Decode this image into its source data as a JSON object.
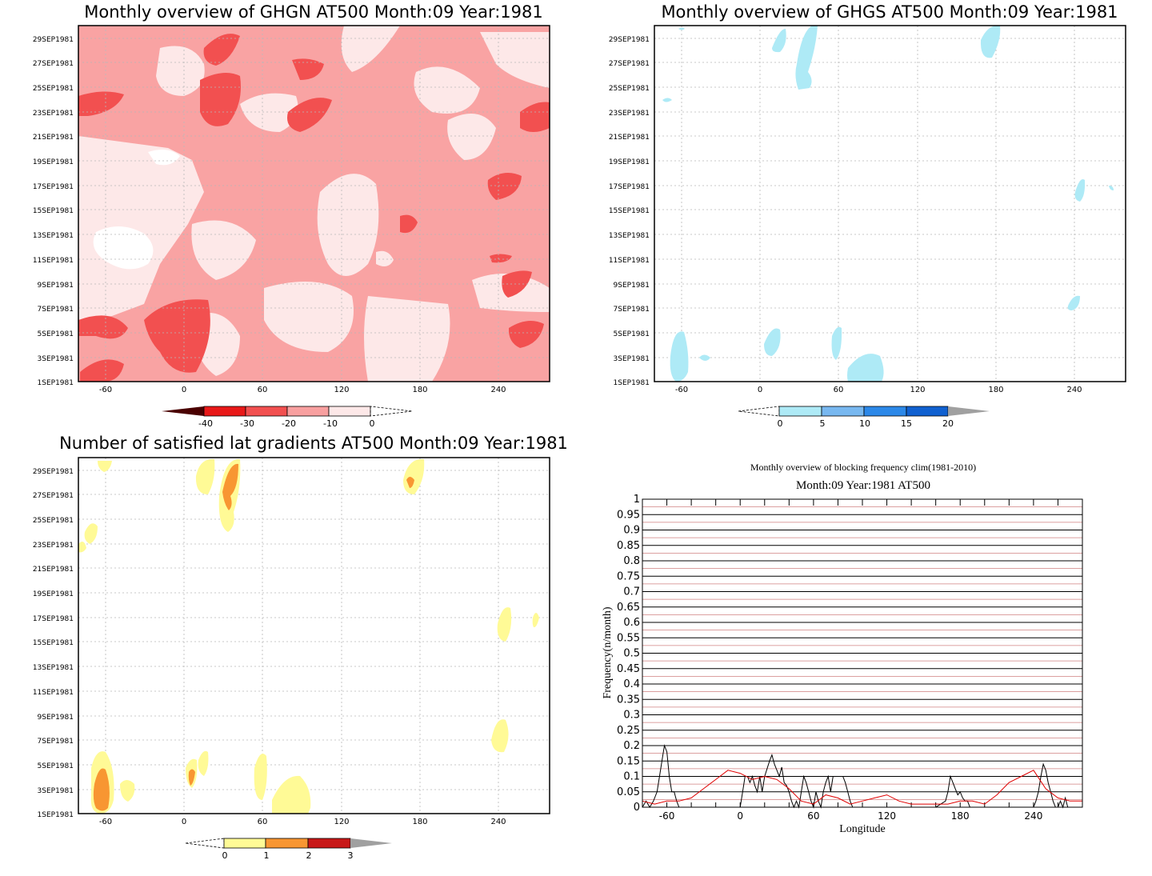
{
  "chart_data": [
    {
      "type": "heatmap",
      "title": "Monthly overview of GHGN AT500 Month:09 Year:1981",
      "x_ticks": [
        "-60",
        "0",
        "60",
        "120",
        "180",
        "240"
      ],
      "y_ticks": [
        "1SEP1981",
        "3SEP1981",
        "5SEP1981",
        "7SEP1981",
        "9SEP1981",
        "11SEP1981",
        "13SEP1981",
        "15SEP1981",
        "17SEP1981",
        "19SEP1981",
        "21SEP1981",
        "23SEP1981",
        "25SEP1981",
        "27SEP1981",
        "29SEP1981"
      ],
      "colorbar": {
        "labels": [
          "-40",
          "-30",
          "-20",
          "-10",
          "0"
        ],
        "colors": [
          "#4a0000",
          "#e81818",
          "#f25050",
          "#f8a0a0",
          "#fde8e8"
        ]
      }
    },
    {
      "type": "heatmap",
      "title": "Monthly overview of GHGS AT500 Month:09 Year:1981",
      "x_ticks": [
        "-60",
        "0",
        "60",
        "120",
        "180",
        "240"
      ],
      "y_ticks": [
        "1SEP1981",
        "3SEP1981",
        "5SEP1981",
        "7SEP1981",
        "9SEP1981",
        "11SEP1981",
        "13SEP1981",
        "15SEP1981",
        "17SEP1981",
        "19SEP1981",
        "21SEP1981",
        "23SEP1981",
        "25SEP1981",
        "27SEP1981",
        "29SEP1981"
      ],
      "colorbar": {
        "labels": [
          "0",
          "5",
          "10",
          "15",
          "20"
        ],
        "colors": [
          "#aeeaf6",
          "#78b8f0",
          "#2c88e8",
          "#1060d0",
          "#a0a0a0"
        ]
      }
    },
    {
      "type": "heatmap",
      "title": "Number of satisfied lat gradients AT500 Month:09 Year:1981",
      "x_ticks": [
        "-60",
        "0",
        "60",
        "120",
        "180",
        "240"
      ],
      "y_ticks": [
        "1SEP1981",
        "3SEP1981",
        "5SEP1981",
        "7SEP1981",
        "9SEP1981",
        "11SEP1981",
        "13SEP1981",
        "15SEP1981",
        "17SEP1981",
        "19SEP1981",
        "21SEP1981",
        "23SEP1981",
        "25SEP1981",
        "27SEP1981",
        "29SEP1981"
      ],
      "colorbar": {
        "labels": [
          "0",
          "1",
          "2",
          "3"
        ],
        "colors": [
          "#fffa96",
          "#f89632",
          "#c81818",
          "#a0a0a0"
        ]
      }
    },
    {
      "type": "line",
      "title": "Monthly overview of blocking frequency clim(1981-2010)",
      "subtitle": "Month:09 Year:1981  AT500",
      "xlabel": "Longitude",
      "ylabel": "Frequency(n/month)",
      "xlim": [
        -80,
        280
      ],
      "ylim": [
        0,
        1
      ],
      "x_ticks": [
        "-60",
        "0",
        "60",
        "120",
        "180",
        "240"
      ],
      "y_ticks": [
        "0",
        "0.05",
        "0.1",
        "0.15",
        "0.2",
        "0.25",
        "0.3",
        "0.35",
        "0.4",
        "0.45",
        "0.5",
        "0.55",
        "0.6",
        "0.65",
        "0.7",
        "0.75",
        "0.8",
        "0.85",
        "0.9",
        "0.95",
        "1"
      ],
      "series": [
        {
          "color": "#000000",
          "x": [
            -80,
            -77,
            -74,
            -71,
            -68,
            -66,
            -64,
            -62,
            -60,
            -58,
            -56,
            -54,
            -52,
            -50,
            -48,
            -46,
            -44,
            -42,
            -40,
            -20,
            -10,
            -5,
            0,
            2,
            4,
            6,
            8,
            10,
            12,
            14,
            16,
            18,
            20,
            24,
            26,
            28,
            30,
            32,
            34,
            36,
            38,
            40,
            42,
            44,
            46,
            48,
            50,
            52,
            54,
            56,
            58,
            60,
            62,
            64,
            66,
            68,
            70,
            72,
            74,
            76,
            78,
            80,
            82,
            84,
            86,
            88,
            90,
            92,
            94,
            96,
            98,
            100,
            110,
            120,
            140,
            160,
            168,
            170,
            172,
            174,
            176,
            178,
            180,
            182,
            184,
            186,
            188,
            190,
            200,
            220,
            240,
            242,
            244,
            246,
            248,
            250,
            252,
            254,
            256,
            258,
            260,
            262,
            264,
            266,
            268,
            270,
            275,
            280
          ],
          "values": [
            0,
            0.02,
            0,
            0.02,
            0.05,
            0.1,
            0.15,
            0.2,
            0.18,
            0.1,
            0.05,
            0.05,
            0.02,
            0,
            0,
            0,
            0,
            0,
            0,
            0,
            0,
            0,
            0,
            0.05,
            0.1,
            0.1,
            0.08,
            0.1,
            0.07,
            0.05,
            0.1,
            0.05,
            0.1,
            0.15,
            0.17,
            0.14,
            0.12,
            0.1,
            0.13,
            0.08,
            0.07,
            0.05,
            0.02,
            0,
            0.02,
            0,
            0.05,
            0.1,
            0.08,
            0.05,
            0.02,
            0,
            0.05,
            0.02,
            0,
            0.05,
            0.08,
            0.1,
            0.05,
            0.1,
            0.1,
            0.1,
            0.1,
            0.1,
            0.08,
            0.05,
            0.02,
            0,
            0,
            0,
            0,
            0,
            0,
            0,
            0,
            0,
            0.02,
            0.05,
            0.1,
            0.08,
            0.06,
            0.04,
            0.05,
            0.03,
            0.02,
            0.02,
            0,
            0,
            0,
            0,
            0,
            0.02,
            0.05,
            0.1,
            0.14,
            0.12,
            0.08,
            0.05,
            0.02,
            0,
            0,
            0.02,
            0,
            0.03,
            0,
            0,
            0,
            0
          ]
        },
        {
          "color": "#e00000",
          "x": [
            -80,
            -70,
            -60,
            -50,
            -40,
            -30,
            -20,
            -10,
            0,
            10,
            20,
            30,
            40,
            50,
            60,
            70,
            80,
            90,
            100,
            110,
            120,
            130,
            140,
            150,
            160,
            170,
            180,
            190,
            200,
            210,
            220,
            230,
            240,
            250,
            260,
            270,
            280
          ],
          "values": [
            0.02,
            0.01,
            0.02,
            0.02,
            0.03,
            0.06,
            0.09,
            0.12,
            0.11,
            0.09,
            0.1,
            0.09,
            0.06,
            0.02,
            0.01,
            0.04,
            0.03,
            0.01,
            0.02,
            0.03,
            0.04,
            0.02,
            0.01,
            0.01,
            0.01,
            0.01,
            0.02,
            0.02,
            0.01,
            0.04,
            0.08,
            0.1,
            0.12,
            0.06,
            0.03,
            0.02,
            0.02
          ]
        }
      ]
    }
  ]
}
